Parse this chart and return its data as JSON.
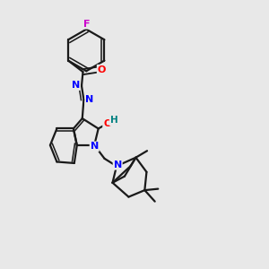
{
  "bg_color": "#e8e8e8",
  "bond_color": "#1a1a1a",
  "bond_width": 1.6,
  "atom_colors": {
    "F": "#cc00cc",
    "O": "#ff0000",
    "N": "#0000ff",
    "H": "#008080",
    "C": "#1a1a1a"
  },
  "figsize": [
    3.0,
    3.0
  ],
  "dpi": 100
}
